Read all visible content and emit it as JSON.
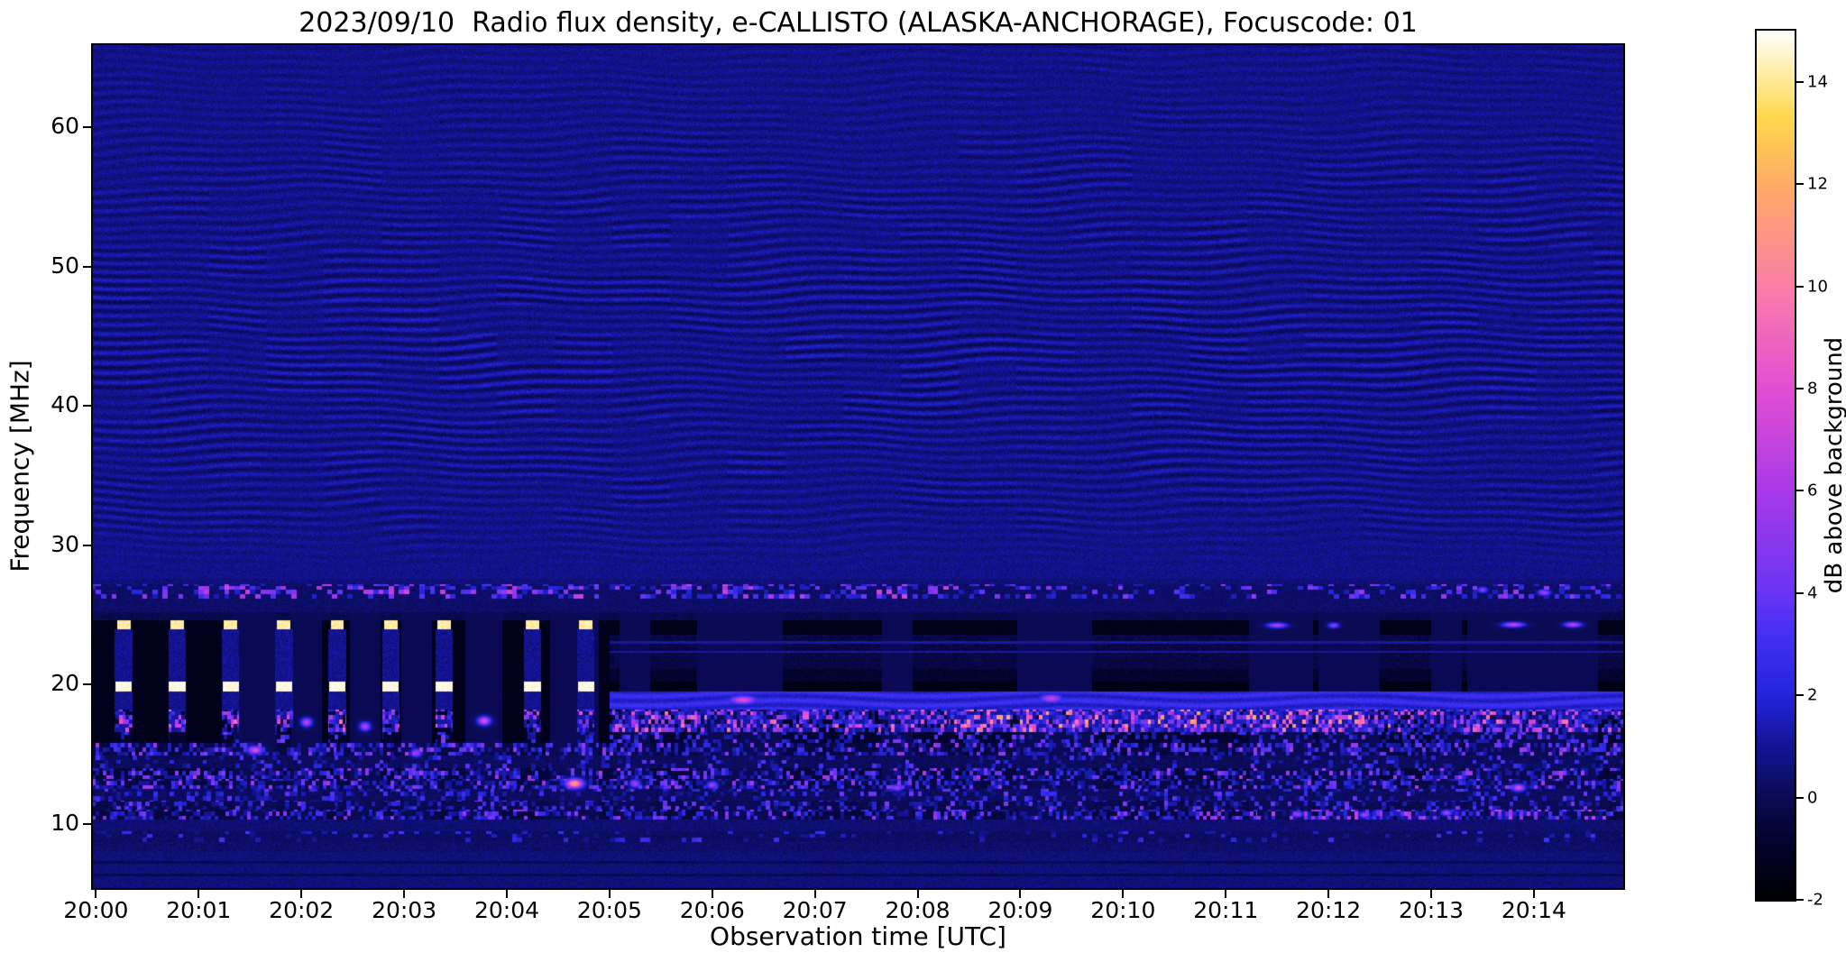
{
  "figure": {
    "title": "2023/09/10  Radio flux density, e-CALLISTO (ALASKA-ANCHORAGE), Focuscode: 01",
    "xlabel": "Observation time [UTC]",
    "ylabel": "Frequency [MHz]",
    "colorbar_label": "dB above background",
    "date": "2023/09/10",
    "instrument": "e-CALLISTO",
    "station": "ALASKA-ANCHORAGE",
    "focuscode": "01"
  },
  "chart_data": {
    "type": "heatmap",
    "title": "2023/09/10  Radio flux density, e-CALLISTO (ALASKA-ANCHORAGE), Focuscode: 01",
    "xlabel": "Observation time [UTC]",
    "ylabel": "Frequency [MHz]",
    "x_ticks": [
      "20:00",
      "20:01",
      "20:02",
      "20:03",
      "20:04",
      "20:05",
      "20:06",
      "20:07",
      "20:08",
      "20:09",
      "20:10",
      "20:11",
      "20:12",
      "20:13",
      "20:14"
    ],
    "x_tick_minutes": [
      0,
      1,
      2,
      3,
      4,
      5,
      6,
      7,
      8,
      9,
      10,
      11,
      12,
      13,
      14
    ],
    "x_range_minutes": [
      -0.03,
      14.87
    ],
    "y_ticks_mhz": [
      10,
      20,
      30,
      40,
      50,
      60
    ],
    "y_range_mhz": [
      5.4,
      65.9
    ],
    "colorbar": {
      "label": "dB above background",
      "ticks": [
        14,
        12,
        10,
        8,
        6,
        4,
        2,
        0,
        -2
      ],
      "range": [
        -2,
        15
      ]
    },
    "colormap_stops": [
      [
        0.0,
        "#000004"
      ],
      [
        0.06,
        "#03032a"
      ],
      [
        0.118,
        "#0b0b55"
      ],
      [
        0.18,
        "#15159b"
      ],
      [
        0.235,
        "#2525dd"
      ],
      [
        0.3,
        "#4230f2"
      ],
      [
        0.353,
        "#6a35f5"
      ],
      [
        0.47,
        "#a93ae8"
      ],
      [
        0.59,
        "#e44fd2"
      ],
      [
        0.7,
        "#fb7cab"
      ],
      [
        0.82,
        "#ffab68"
      ],
      [
        0.9,
        "#ffd84e"
      ],
      [
        0.965,
        "#fff3c0"
      ],
      [
        1.0,
        "#ffffff"
      ]
    ],
    "background_db": 0.8,
    "ripples": {
      "freq_start_mhz": 27.6,
      "peak_freq_mhz": 44,
      "sigma_mhz": 20,
      "amp_db": 0.6,
      "wavelength_mhz": 0.66
    },
    "periodic_markers": {
      "times_min": [
        0.27,
        0.79,
        1.31,
        1.83,
        2.35,
        2.87,
        3.39,
        4.25,
        4.77
      ],
      "yellow_dash": {
        "freq_lo": 23.95,
        "freq_hi": 24.65,
        "db": 13.5,
        "half_width_min": 0.065
      },
      "white_dash": {
        "freq_lo": 19.5,
        "freq_hi": 20.2,
        "db": 14.3,
        "half_width_min": 0.08
      }
    },
    "interference_columns": {
      "t_end_min": 5.0,
      "freq_lo": 15.85,
      "freq_hi": 24.65,
      "gap_half_width_min": 0.085,
      "dark_db": -1.35,
      "gap_db": 0.9
    },
    "bands": [
      {
        "lo": 27.2,
        "hi": 27.6,
        "style": "flat",
        "base": 0.55,
        "noise": 1.0
      },
      {
        "lo": 26.2,
        "hi": 27.2,
        "style": "speckle",
        "base": 0.3,
        "noise": 0.9,
        "density": 0.28,
        "seg": 0.05,
        "vmin": 1.5,
        "vamp": 4.5,
        "vpow": 2.0,
        "hot": [
          [
            1.0,
            8.3
          ]
        ]
      },
      {
        "lo": 25.2,
        "hi": 26.2,
        "style": "flat",
        "base": 0.3,
        "noise": 0.9
      },
      {
        "lo": 24.65,
        "hi": 25.2,
        "style": "flat",
        "base": -0.15,
        "noise": 0.8
      },
      {
        "lo": 23.6,
        "hi": 24.65,
        "style": "flat",
        "base": -1.4,
        "noise": 0.55
      },
      {
        "lo": 21.1,
        "hi": 23.6,
        "style": "flat",
        "base": -0.35,
        "noise": 1.0,
        "lines": [
          22.35,
          23.05
        ],
        "line_db": 1.2
      },
      {
        "lo": 20.2,
        "hi": 21.1,
        "style": "flat",
        "base": -0.85,
        "noise": 0.8
      },
      {
        "lo": 19.5,
        "hi": 20.2,
        "style": "flat",
        "base": -1.5,
        "noise": 0.5
      },
      {
        "lo": 18.2,
        "hi": 19.5,
        "style": "shelf",
        "base": 2.25,
        "noise": 0.9
      },
      {
        "lo": 16.6,
        "hi": 18.2,
        "style": "speckle",
        "base": -1.0,
        "noise": 0.6,
        "density": 0.8,
        "seg": 0.032,
        "vmin": 1.1,
        "vamp": 8.5,
        "vpow": 3.2,
        "hot": [
          [
            8.3,
            12.4
          ]
        ]
      },
      {
        "lo": 15.8,
        "hi": 16.6,
        "style": "speckle",
        "base": -0.8,
        "noise": 0.7,
        "density": 0.3,
        "seg": 0.04,
        "vmin": 1.0,
        "vamp": 4.0,
        "vpow": 2.0
      },
      {
        "lo": 14.9,
        "hi": 15.8,
        "style": "speckle",
        "base": -0.4,
        "noise": 0.9,
        "density": 0.5,
        "seg": 0.035,
        "vmin": 1.0,
        "vamp": 5.0,
        "vpow": 2.4
      },
      {
        "lo": 14.0,
        "hi": 14.9,
        "style": "speckle",
        "base": 0.1,
        "noise": 1.0,
        "density": 0.18,
        "seg": 0.04,
        "vmin": 1.0,
        "vamp": 3.0,
        "vpow": 2.0
      },
      {
        "lo": 13.2,
        "hi": 14.0,
        "style": "speckle",
        "base": -0.6,
        "noise": 0.8,
        "density": 0.45,
        "seg": 0.035,
        "vmin": 1.0,
        "vamp": 5.5,
        "vpow": 2.6
      },
      {
        "lo": 12.5,
        "hi": 13.2,
        "style": "speckle",
        "base": -0.3,
        "noise": 0.9,
        "density": 0.5,
        "seg": 0.035,
        "vmin": 1.0,
        "vamp": 5.0,
        "vpow": 2.6
      },
      {
        "lo": 11.7,
        "hi": 12.5,
        "style": "speckle",
        "base": 0.15,
        "noise": 1.0,
        "density": 0.25,
        "seg": 0.04,
        "vmin": 0.8,
        "vamp": 3.5,
        "vpow": 2.0
      },
      {
        "lo": 11.0,
        "hi": 11.7,
        "style": "speckle",
        "base": -0.2,
        "noise": 0.9,
        "density": 0.35,
        "seg": 0.04,
        "vmin": 0.8,
        "vamp": 4.0,
        "vpow": 2.2
      },
      {
        "lo": 10.3,
        "hi": 11.0,
        "style": "speckle",
        "base": -0.45,
        "noise": 0.8,
        "density": 0.45,
        "seg": 0.035,
        "vmin": 0.9,
        "vamp": 5.0,
        "vpow": 2.4,
        "hot": [
          [
            11.3,
            14.7
          ]
        ]
      },
      {
        "lo": 9.5,
        "hi": 10.3,
        "style": "flat",
        "base": 0.45,
        "noise": 0.9
      },
      {
        "lo": 8.7,
        "hi": 9.5,
        "style": "speckle",
        "base": 0.2,
        "noise": 0.9,
        "density": 0.12,
        "seg": 0.05,
        "vmin": 0.8,
        "vamp": 2.5,
        "vpow": 2.0
      },
      {
        "lo": 8.0,
        "hi": 8.7,
        "style": "flat",
        "base": 0.35,
        "noise": 1.0
      },
      {
        "lo": 5.4,
        "hi": 8.0,
        "style": "flat",
        "base": 0.55,
        "noise": 0.9,
        "dark_lines": [
          7.25,
          6.35
        ],
        "dark_line_db": -0.15
      }
    ],
    "blobs": [
      {
        "t": 1.55,
        "f": 15.3,
        "rt": 0.07,
        "rf": 0.28,
        "db": 8
      },
      {
        "t": 2.05,
        "f": 17.3,
        "rt": 0.05,
        "rf": 0.3,
        "db": 7
      },
      {
        "t": 2.62,
        "f": 17.0,
        "rt": 0.05,
        "rf": 0.3,
        "db": 6.5
      },
      {
        "t": 3.12,
        "f": 15.1,
        "rt": 0.05,
        "rf": 0.28,
        "db": 6
      },
      {
        "t": 3.78,
        "f": 17.4,
        "rt": 0.06,
        "rf": 0.3,
        "db": 8
      },
      {
        "t": 4.66,
        "f": 12.9,
        "rt": 0.08,
        "rf": 0.33,
        "db": 12
      },
      {
        "t": 5.25,
        "f": 12.9,
        "rt": 0.05,
        "rf": 0.28,
        "db": 6
      },
      {
        "t": 6.0,
        "f": 12.8,
        "rt": 0.05,
        "rf": 0.25,
        "db": 6
      },
      {
        "t": 6.3,
        "f": 18.9,
        "rt": 0.13,
        "rf": 0.3,
        "db": 8
      },
      {
        "t": 7.8,
        "f": 12.6,
        "rt": 0.05,
        "rf": 0.22,
        "db": 6
      },
      {
        "t": 9.3,
        "f": 19.0,
        "rt": 0.11,
        "rf": 0.3,
        "db": 7
      },
      {
        "t": 9.55,
        "f": 17.2,
        "rt": 0.05,
        "rf": 0.3,
        "db": 8
      },
      {
        "t": 11.5,
        "f": 24.25,
        "rt": 0.09,
        "rf": 0.18,
        "db": 6.5
      },
      {
        "t": 12.05,
        "f": 24.25,
        "rt": 0.05,
        "rf": 0.18,
        "db": 5.5
      },
      {
        "t": 13.8,
        "f": 24.3,
        "rt": 0.1,
        "rf": 0.18,
        "db": 7
      },
      {
        "t": 14.38,
        "f": 24.3,
        "rt": 0.08,
        "rf": 0.18,
        "db": 7
      },
      {
        "t": 13.85,
        "f": 12.6,
        "rt": 0.06,
        "rf": 0.25,
        "db": 8
      },
      {
        "t": 11.7,
        "f": 10.7,
        "rt": 0.05,
        "rf": 0.2,
        "db": 6
      },
      {
        "t": 12.35,
        "f": 10.65,
        "rt": 0.05,
        "rf": 0.2,
        "db": 6
      },
      {
        "t": 13.15,
        "f": 10.8,
        "rt": 0.05,
        "rf": 0.2,
        "db": 6.5
      },
      {
        "t": 13.5,
        "f": 26.8,
        "rt": 0.05,
        "rf": 0.2,
        "db": 5
      },
      {
        "t": 14.1,
        "f": 26.6,
        "rt": 0.06,
        "rf": 0.2,
        "db": 6
      }
    ]
  }
}
